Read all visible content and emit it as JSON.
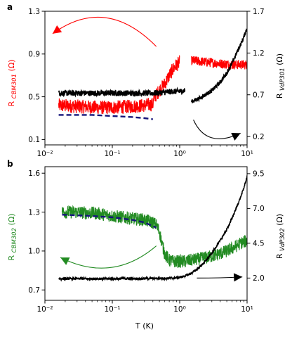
{
  "chart_data": [
    {
      "type": "line",
      "panel_label": "a",
      "xscale": "log",
      "xlim": [
        0.01,
        10
      ],
      "x_ticks": [
        0.01,
        0.1,
        1,
        10
      ],
      "x_tick_labels": [
        "10⁻²",
        "10⁻¹",
        "10⁰",
        "10¹"
      ],
      "left_axis": {
        "label_main": "R ",
        "label_sub": "CBM301",
        "label_unit": " (Ω)",
        "ylim": [
          0.05,
          1.3
        ],
        "ticks": [
          0.1,
          0.5,
          0.9,
          1.3
        ],
        "tick_labels": [
          "0.1",
          "0.5",
          "0.9",
          "1.3"
        ]
      },
      "right_axis": {
        "label_main": "R ",
        "label_sub": "VdP301",
        "label_unit": " (Ω)",
        "ylim": [
          0.1,
          1.7
        ],
        "ticks": [
          0.2,
          0.7,
          1.2,
          1.7
        ],
        "tick_labels": [
          "0.2",
          "0.7",
          "1.2",
          "1.7"
        ]
      },
      "series": [
        {
          "color": "#ff0000",
          "axis": "left",
          "noise": 0.065,
          "x": [
            0.016,
            0.03,
            0.06,
            0.1,
            0.2,
            0.3,
            0.4,
            0.42,
            0.45,
            0.5,
            0.6,
            0.7,
            0.8,
            0.9,
            1.0
          ],
          "y": [
            0.42,
            0.41,
            0.4,
            0.4,
            0.41,
            0.42,
            0.43,
            0.5,
            0.52,
            0.56,
            0.62,
            0.7,
            0.76,
            0.8,
            0.82
          ]
        },
        {
          "color": "#ff0000",
          "axis": "left",
          "noise": 0.045,
          "x": [
            1.5,
            2,
            3,
            4,
            6,
            8,
            10
          ],
          "y": [
            0.84,
            0.83,
            0.82,
            0.81,
            0.8,
            0.8,
            0.8
          ]
        },
        {
          "color": "#000000",
          "axis": "right",
          "noise": 0.035,
          "x": [
            0.016,
            0.03,
            0.06,
            0.1,
            0.2,
            0.4,
            0.6,
            0.8,
            1.0,
            1.2
          ],
          "y": [
            0.72,
            0.72,
            0.72,
            0.72,
            0.72,
            0.72,
            0.73,
            0.74,
            0.74,
            0.75
          ]
        },
        {
          "color": "#000000",
          "axis": "right",
          "noise": 0.025,
          "x": [
            1.5,
            2,
            3,
            4,
            5,
            6,
            7,
            8,
            9,
            10
          ],
          "y": [
            0.62,
            0.66,
            0.75,
            0.85,
            0.96,
            1.08,
            1.2,
            1.3,
            1.4,
            1.5
          ]
        }
      ],
      "fit": {
        "color": "#14147a",
        "axis": "left",
        "dash": true,
        "x": [
          0.016,
          0.05,
          0.1,
          0.2,
          0.3,
          0.4
        ],
        "y": [
          0.33,
          0.33,
          0.32,
          0.31,
          0.3,
          0.29
        ]
      },
      "arrows": [
        {
          "color": "#ff0000",
          "axis": "left",
          "from": [
            0.45,
            0.97
          ],
          "ctrl": [
            0.08,
            1.45
          ],
          "to": [
            0.013,
            1.09
          ]
        },
        {
          "color": "#000000",
          "axis": "right",
          "from": [
            1.6,
            0.4
          ],
          "ctrl": [
            2.5,
            0.05
          ],
          "to": [
            8.0,
            0.24
          ]
        }
      ]
    },
    {
      "type": "line",
      "panel_label": "b",
      "xscale": "log",
      "xlim": [
        0.01,
        10
      ],
      "x_ticks": [
        0.01,
        0.1,
        1,
        10
      ],
      "x_tick_labels": [
        "10⁻²",
        "10⁻¹",
        "10⁰",
        "10¹"
      ],
      "xlabel": "T (K)",
      "left_axis": {
        "label_main": "R ",
        "label_sub": "CBM302",
        "label_unit": " (Ω)",
        "ylim": [
          0.62,
          1.65
        ],
        "ticks": [
          0.7,
          1.0,
          1.3,
          1.6
        ],
        "tick_labels": [
          "0.7",
          "1.0",
          "1.3",
          "1.6"
        ]
      },
      "right_axis": {
        "label_main": "R ",
        "label_sub": "VdP302",
        "label_unit": " (Ω)",
        "ylim": [
          0.4,
          10.0
        ],
        "ticks": [
          2.0,
          4.5,
          7.0,
          9.5
        ],
        "tick_labels": [
          "2.0",
          "4.5",
          "7.0",
          "9.5"
        ]
      },
      "series": [
        {
          "color": "#228b22",
          "axis": "left",
          "noise": 0.05,
          "x": [
            0.018,
            0.03,
            0.06,
            0.1,
            0.2,
            0.3,
            0.4,
            0.45,
            0.5,
            0.55,
            0.6,
            0.65,
            0.7,
            0.8,
            0.9,
            1.0,
            1.2,
            1.5,
            2,
            3,
            4,
            5,
            6,
            7,
            8,
            10
          ],
          "y": [
            1.3,
            1.3,
            1.29,
            1.27,
            1.25,
            1.24,
            1.22,
            1.2,
            1.15,
            1.05,
            0.98,
            0.95,
            0.93,
            0.92,
            0.92,
            0.92,
            0.92,
            0.93,
            0.94,
            0.96,
            0.98,
            1.0,
            1.02,
            1.04,
            1.06,
            1.08
          ]
        }
      ],
      "black_series": {
        "color": "#000000",
        "axis": "right",
        "noise": 0.08,
        "x": [
          0.016,
          0.05,
          0.1,
          0.2,
          0.4,
          0.6,
          0.8,
          1.0,
          1.2,
          1.5,
          2,
          2.5,
          3,
          4,
          5,
          6,
          7,
          8,
          9,
          10
        ],
        "y": [
          1.95,
          1.95,
          1.95,
          1.96,
          1.97,
          1.98,
          2.0,
          2.05,
          2.15,
          2.35,
          2.8,
          3.3,
          3.8,
          4.7,
          5.5,
          6.3,
          7.1,
          7.8,
          8.5,
          9.3
        ]
      },
      "fit": {
        "color": "#14147a",
        "axis": "left",
        "dash": true,
        "x": [
          0.018,
          0.05,
          0.1,
          0.2,
          0.3,
          0.45
        ],
        "y": [
          1.28,
          1.27,
          1.26,
          1.24,
          1.22,
          1.18
        ]
      },
      "arrows": [
        {
          "color": "#228b22",
          "axis": "left",
          "from": [
            0.45,
            1.04
          ],
          "ctrl": [
            0.1,
            0.75
          ],
          "to": [
            0.017,
            0.95
          ]
        },
        {
          "color": "#000000",
          "axis": "right",
          "from": [
            1.8,
            2.0
          ],
          "ctrl": [
            4.0,
            2.0
          ],
          "to": [
            8.5,
            2.08
          ]
        }
      ]
    }
  ]
}
